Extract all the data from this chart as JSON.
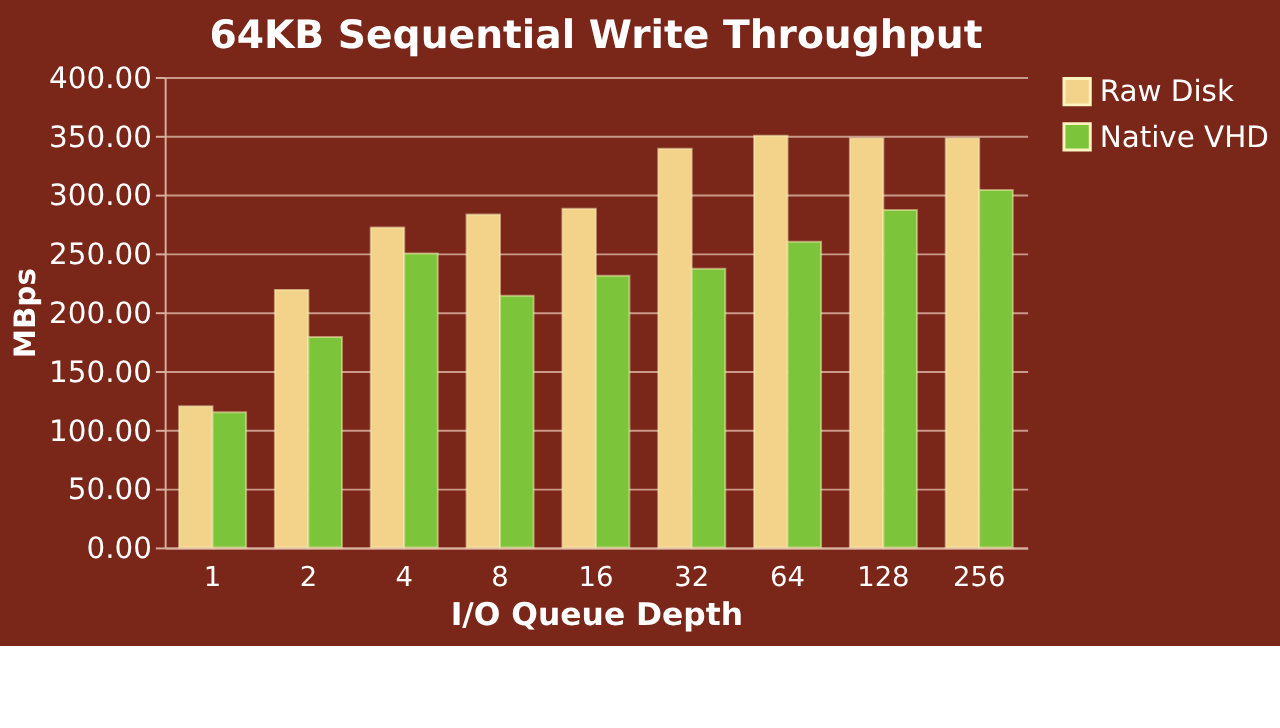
{
  "chart_data": {
    "type": "bar",
    "title": "64KB Sequential Write Throughput",
    "xlabel": "I/O Queue Depth",
    "ylabel": "MBps",
    "categories": [
      "1",
      "2",
      "4",
      "8",
      "16",
      "32",
      "64",
      "128",
      "256"
    ],
    "series": [
      {
        "name": "Raw Disk",
        "color": "#f2d389",
        "values": [
          120,
          219,
          272,
          283,
          288,
          339,
          350,
          348,
          348
        ]
      },
      {
        "name": "Native VHD",
        "color": "#7cc43a",
        "values": [
          115,
          179,
          250,
          214,
          231,
          237,
          260,
          287,
          304
        ]
      }
    ],
    "ylim": [
      0,
      400
    ],
    "yticks": [
      {
        "value": 0,
        "label": "0.00"
      },
      {
        "value": 50,
        "label": "50.00"
      },
      {
        "value": 100,
        "label": "100.00"
      },
      {
        "value": 150,
        "label": "150.00"
      },
      {
        "value": 200,
        "label": "200.00"
      },
      {
        "value": 250,
        "label": "250.00"
      },
      {
        "value": 300,
        "label": "300.00"
      },
      {
        "value": 350,
        "label": "350.00"
      },
      {
        "value": 400,
        "label": "400.00"
      }
    ],
    "grid": "y",
    "legend": "right"
  }
}
